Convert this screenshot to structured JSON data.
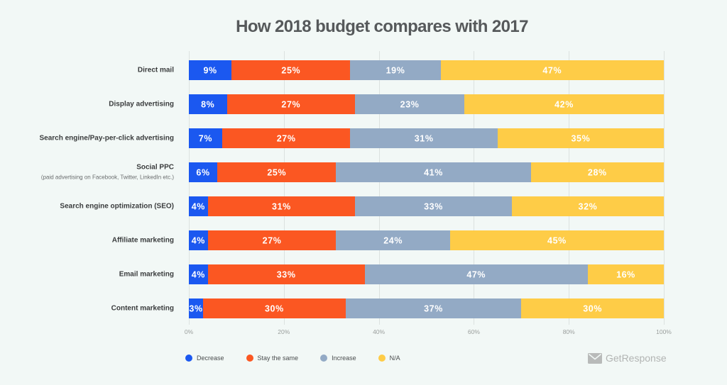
{
  "chart_data": {
    "type": "bar",
    "orientation": "horizontal",
    "stacked": true,
    "title": "How 2018 budget compares with 2017",
    "categories": [
      "Direct mail",
      "Display advertising",
      "Search engine/Pay-per-click advertising",
      "Social PPC",
      "Search engine optimization (SEO)",
      "Affiliate marketing",
      "Email marketing",
      "Content marketing"
    ],
    "category_notes": [
      "",
      "",
      "",
      "(paid advertising on Facebook, Twitter, LinkedIn etc.)",
      "",
      "",
      "",
      ""
    ],
    "series": [
      {
        "name": "Decrease",
        "color": "#1b58f0",
        "values": [
          9,
          8,
          7,
          6,
          4,
          4,
          4,
          3
        ],
        "labels": [
          "9%",
          "8%",
          "7%",
          "6%",
          "4%",
          "4%",
          "4%",
          "3%"
        ]
      },
      {
        "name": "Stay the same",
        "color": "#fb5722",
        "values": [
          25,
          27,
          27,
          25,
          31,
          27,
          33,
          30
        ],
        "labels": [
          "25%",
          "27%",
          "27%",
          "25%",
          "31%",
          "27%",
          "33%",
          "30%"
        ]
      },
      {
        "name": "Increase",
        "color": "#93aac5",
        "values": [
          19,
          23,
          31,
          41,
          33,
          24,
          47,
          37
        ],
        "labels": [
          "19%",
          "23%",
          "31%",
          "41%",
          "33%",
          "24%",
          "47%",
          "37%"
        ]
      },
      {
        "name": "N/A",
        "color": "#fecc47",
        "values": [
          47,
          42,
          35,
          28,
          32,
          45,
          16,
          30
        ],
        "labels": [
          "47%",
          "42%",
          "35%",
          "28%",
          "32%",
          "45%",
          "16%",
          "30%"
        ]
      }
    ],
    "xlim": [
      0,
      100
    ],
    "xticks": [
      0,
      20,
      40,
      60,
      80,
      100
    ],
    "xtick_labels": [
      "0%",
      "20%",
      "40%",
      "60%",
      "80%",
      "100%"
    ],
    "grid": true,
    "legend": "bottom-left"
  },
  "brand": {
    "name": "GetResponse",
    "icon": "envelope-icon"
  }
}
